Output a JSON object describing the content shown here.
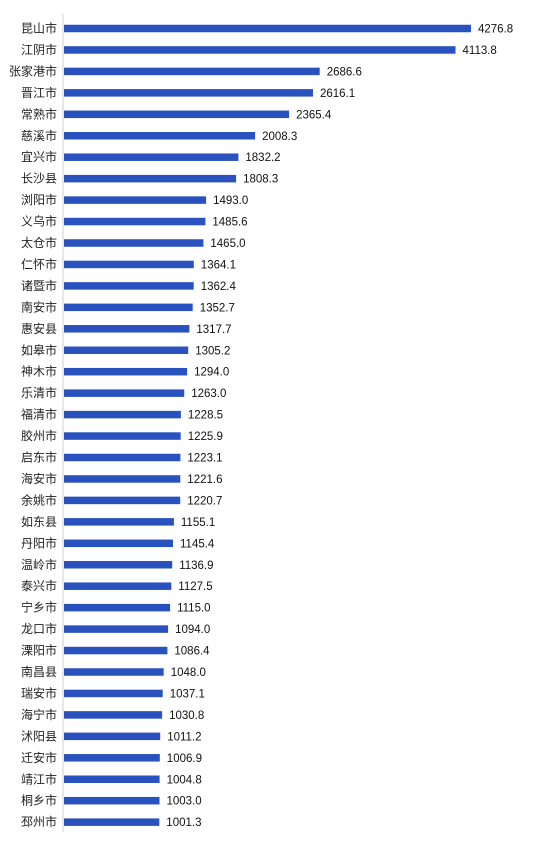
{
  "chart_data": {
    "type": "bar",
    "orientation": "horizontal",
    "title": "",
    "xlabel": "",
    "ylabel": "",
    "grid": false,
    "legend": "none",
    "bar_color": "#2a52be",
    "categories": [
      "昆山市",
      "江阴市",
      "张家港市",
      "晋江市",
      "常熟市",
      "慈溪市",
      "宜兴市",
      "长沙县",
      "浏阳市",
      "义乌市",
      "太仓市",
      "仁怀市",
      "诸暨市",
      "南安市",
      "惠安县",
      "如皋市",
      "神木市",
      "乐清市",
      "福清市",
      "胶州市",
      "启东市",
      "海安市",
      "余姚市",
      "如东县",
      "丹阳市",
      "温岭市",
      "泰兴市",
      "宁乡市",
      "龙口市",
      "溧阳市",
      "南昌县",
      "瑞安市",
      "海宁市",
      "沭阳县",
      "迁安市",
      "靖江市",
      "桐乡市",
      "邳州市"
    ],
    "values": [
      4276.8,
      4113.8,
      2686.6,
      2616.1,
      2365.4,
      2008.3,
      1832.2,
      1808.3,
      1493.0,
      1485.6,
      1465.0,
      1364.1,
      1362.4,
      1352.7,
      1317.7,
      1305.2,
      1294.0,
      1263.0,
      1228.5,
      1225.9,
      1223.1,
      1221.6,
      1220.7,
      1155.1,
      1145.4,
      1136.9,
      1127.5,
      1115.0,
      1094.0,
      1086.4,
      1048.0,
      1037.1,
      1030.8,
      1011.2,
      1006.9,
      1004.8,
      1003.0,
      1001.3
    ],
    "value_labels": [
      "4276.8",
      "4113.8",
      "2686.6",
      "2616.1",
      "2365.4",
      "2008.3",
      "1832.2",
      "1808.3",
      "1493.0",
      "1485.6",
      "1465.0",
      "1364.1",
      "1362.4",
      "1352.7",
      "1317.7",
      "1305.2",
      "1294.0",
      "1263.0",
      "1228.5",
      "1225.9",
      "1223.1",
      "1221.6",
      "1220.7",
      "1155.1",
      "1145.4",
      "1136.9",
      "1127.5",
      "1115.0",
      "1094.0",
      "1086.4",
      "1048.0",
      "1037.1",
      "1030.8",
      "1011.2",
      "1006.9",
      "1004.8",
      "1003.0",
      "1001.3"
    ]
  }
}
